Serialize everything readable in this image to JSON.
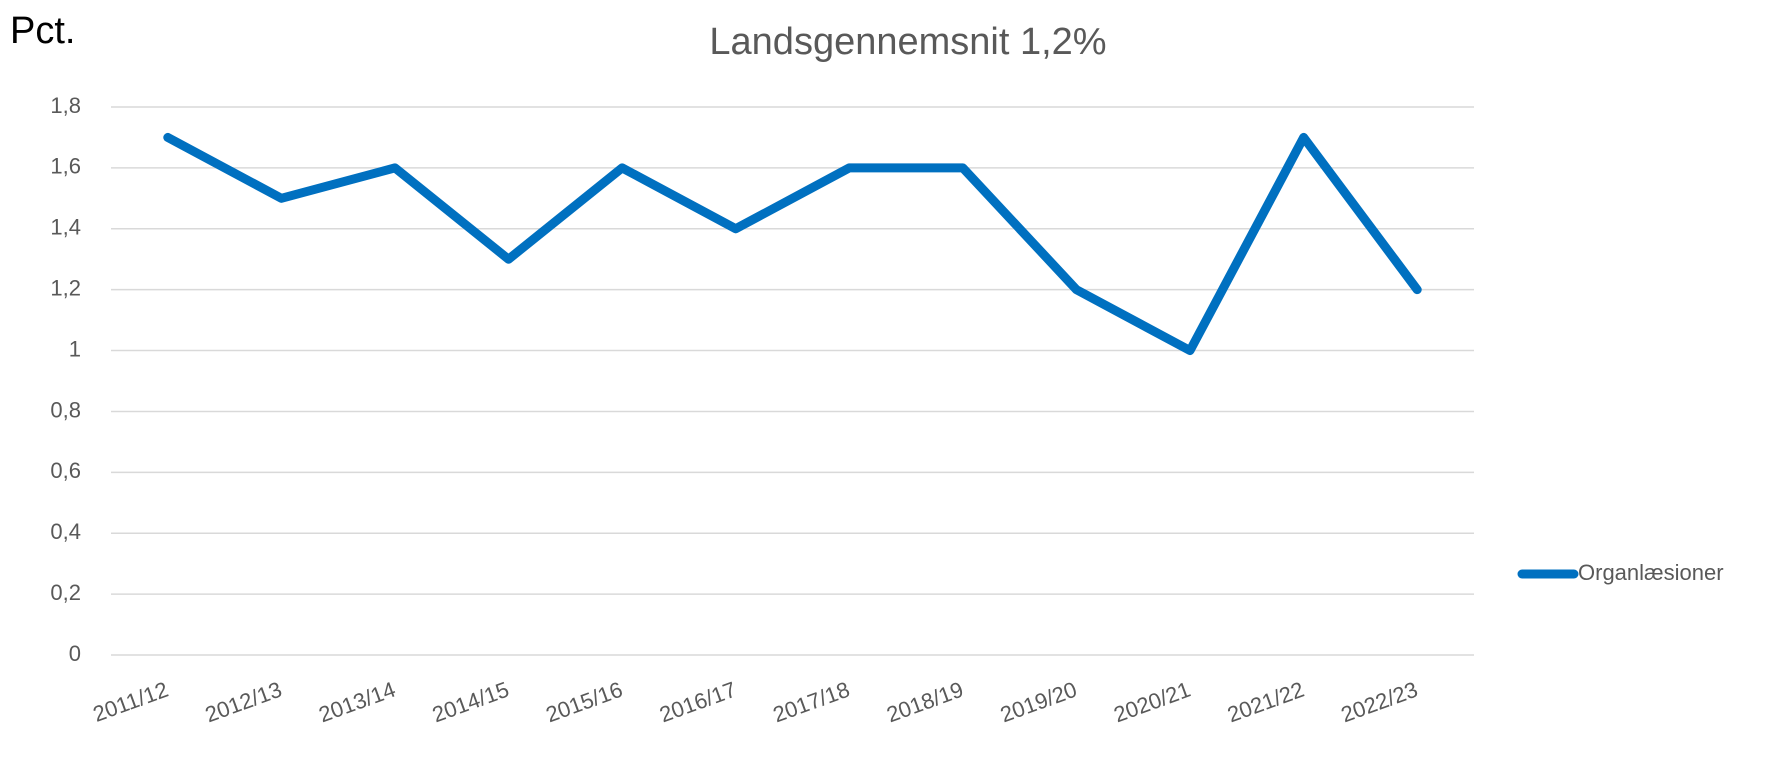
{
  "chart_data": {
    "type": "line",
    "title": "Landsgennemsnit 1,2%",
    "y_label": "Pct.",
    "categories": [
      "2011/12",
      "2012/13",
      "2013/14",
      "2014/15",
      "2015/16",
      "2016/17",
      "2017/18",
      "2018/19",
      "2019/20",
      "2020/21",
      "2021/22",
      "2022/23"
    ],
    "series": [
      {
        "name": "Organlæsioner",
        "color": "#0070c0",
        "values": [
          1.7,
          1.5,
          1.6,
          1.3,
          1.6,
          1.4,
          1.6,
          1.6,
          1.2,
          1.0,
          1.7,
          1.2
        ]
      }
    ],
    "ylim": [
      0,
      1.8
    ],
    "yticks": [
      0,
      {
        "value": 0.2,
        "label": "0,2"
      },
      {
        "value": 0.4,
        "label": "0,4"
      },
      {
        "value": 0.6,
        "label": "0,6"
      },
      {
        "value": 0.8,
        "label": "0,8"
      },
      1,
      {
        "value": 1.2,
        "label": "1,2"
      },
      {
        "value": 1.4,
        "label": "1,4"
      },
      {
        "value": 1.6,
        "label": "1,6"
      },
      {
        "value": 1.8,
        "label": "1,8"
      }
    ],
    "grid": true,
    "legend": "right"
  }
}
